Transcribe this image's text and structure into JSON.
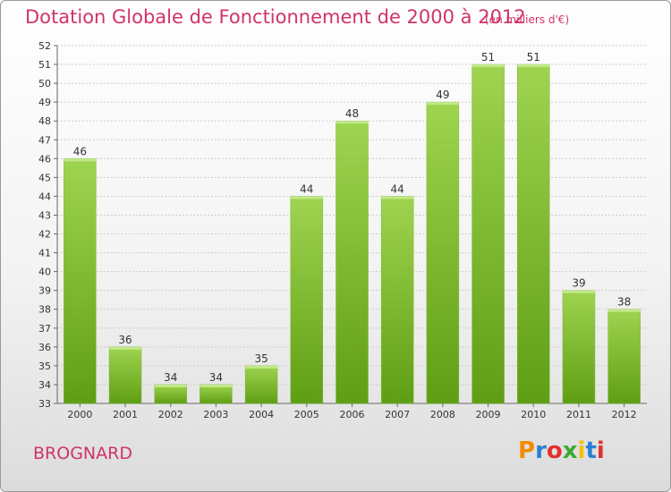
{
  "header": {
    "title": "Dotation Globale de Fonctionnement de 2000 à 2012",
    "unit": "(en milliers d'€)"
  },
  "footer": {
    "town": "BROGNARD",
    "logo": "Proxiti",
    "logo_colors": [
      "#f28c00",
      "#2a7fd4",
      "#e2312d",
      "#3aa935",
      "#f2c200",
      "#2a7fd4",
      "#e2312d"
    ]
  },
  "colors": {
    "bar_light": "#9fd450",
    "bar_dark": "#5f9e14",
    "title": "#d0336b",
    "grid": "#cccccc"
  },
  "chart_data": {
    "type": "bar",
    "title": "Dotation Globale de Fonctionnement de 2000 à 2012",
    "xlabel": "",
    "ylabel": "",
    "ylim": [
      33,
      52
    ],
    "categories": [
      "2000",
      "2001",
      "2002",
      "2003",
      "2004",
      "2005",
      "2006",
      "2007",
      "2008",
      "2009",
      "2010",
      "2011",
      "2012"
    ],
    "values": [
      46,
      36,
      34,
      34,
      35,
      44,
      48,
      44,
      49,
      51,
      51,
      39,
      38
    ],
    "y_ticks": [
      33,
      34,
      35,
      36,
      37,
      38,
      39,
      40,
      41,
      42,
      43,
      44,
      45,
      46,
      47,
      48,
      49,
      50,
      51,
      52
    ],
    "grid": true,
    "legend": "none"
  }
}
